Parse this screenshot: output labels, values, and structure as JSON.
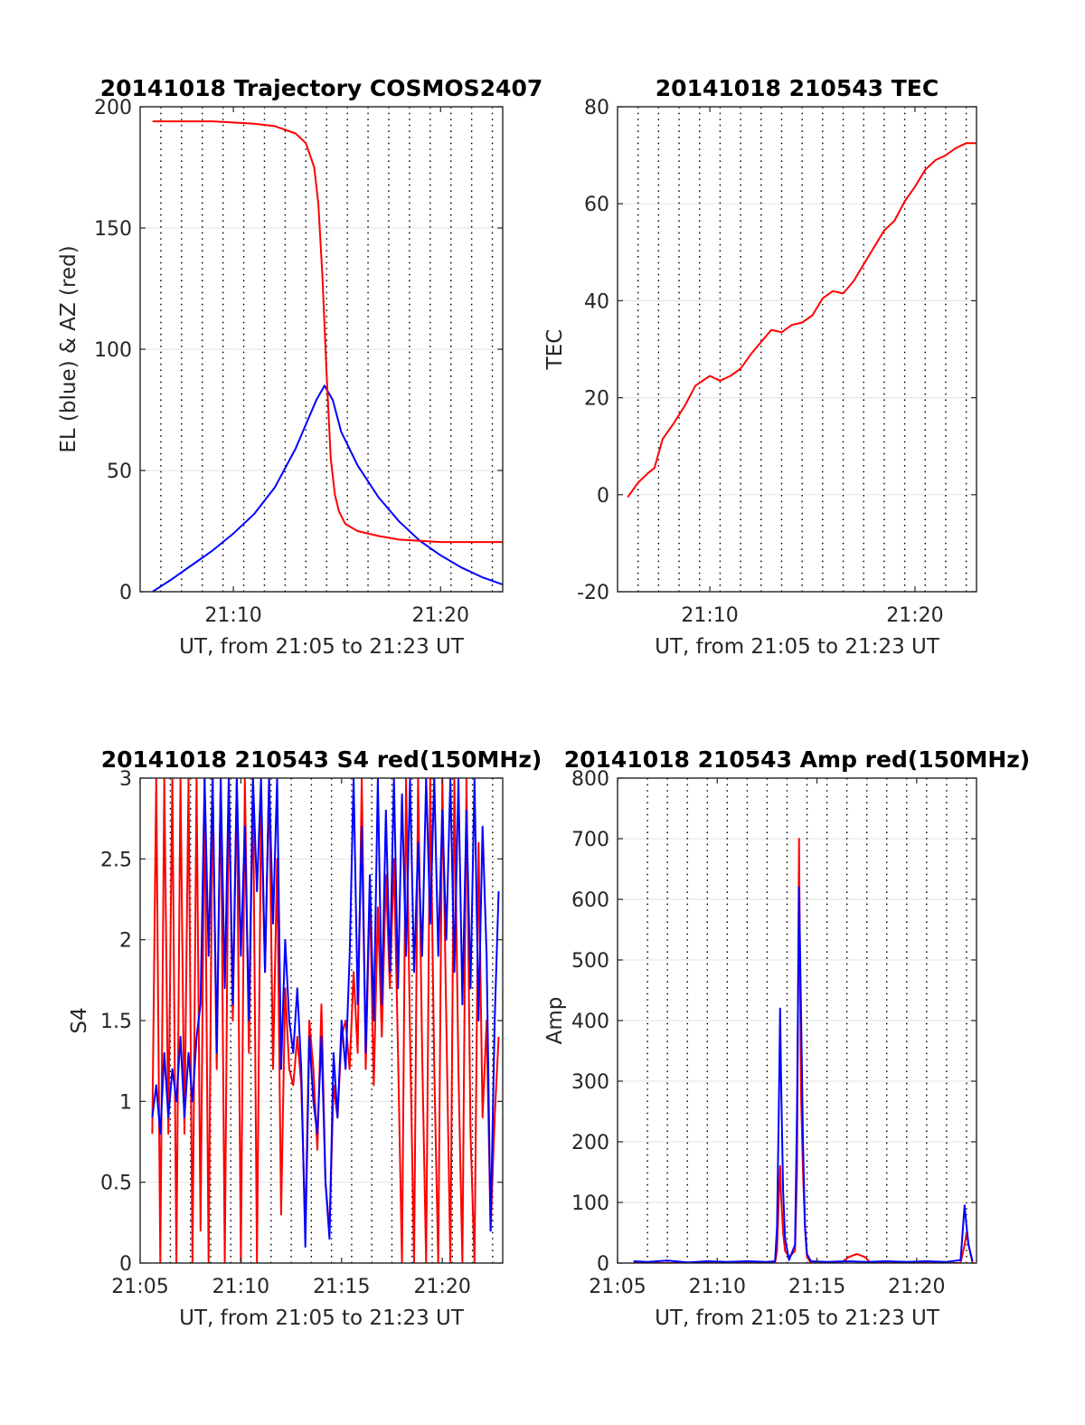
{
  "colors": {
    "az": "#ff0000",
    "el": "#0000ff",
    "red": "#ff0000",
    "blue": "#0000ff",
    "grid": "#e6e6e6",
    "vline": "#000000"
  },
  "chart_data": [
    {
      "id": "trajectory",
      "type": "line",
      "title": "20141018 Trajectory COSMOS2407",
      "xlabel": "UT, from 21:05 to 21:23 UT",
      "ylabel": "EL (blue) & AZ (red)",
      "xlim": [
        5.5,
        23
      ],
      "ylim": [
        0,
        200
      ],
      "xticks": [
        {
          "v": 10,
          "label": "21:10"
        },
        {
          "v": 20,
          "label": "21:20"
        }
      ],
      "yticks": [
        {
          "v": 0,
          "label": "0"
        },
        {
          "v": 50,
          "label": "50"
        },
        {
          "v": 100,
          "label": "100"
        },
        {
          "v": 150,
          "label": "150"
        },
        {
          "v": 200,
          "label": "200"
        }
      ],
      "vlines": [
        6.5,
        7.5,
        8.5,
        9.5,
        10.5,
        11.5,
        12.5,
        13.5,
        14.5,
        15.5,
        16.5,
        17.5,
        18.5,
        19.5,
        20.5,
        21.5,
        22.5
      ],
      "series": [
        {
          "color": "el",
          "x": [
            6.1,
            7,
            8,
            9,
            10,
            11,
            12,
            13,
            13.5,
            14,
            14.4,
            14.8,
            15.2,
            16,
            17,
            18,
            19,
            20,
            21,
            22,
            23
          ],
          "y": [
            0,
            5,
            11,
            17,
            24,
            32,
            43,
            59,
            69,
            79,
            85,
            79,
            66,
            52,
            39,
            29,
            21,
            15,
            10,
            6,
            3
          ]
        },
        {
          "color": "az",
          "x": [
            6.1,
            7,
            8,
            9,
            10,
            11,
            12,
            13,
            13.5,
            13.9,
            14.1,
            14.3,
            14.5,
            14.7,
            14.9,
            15.1,
            15.4,
            16,
            17,
            18,
            19,
            20,
            21,
            22,
            23
          ],
          "y": [
            194,
            194,
            194,
            194,
            193.5,
            193,
            192,
            189,
            185,
            175,
            160,
            130,
            90,
            55,
            40,
            33,
            28,
            25,
            23,
            21.5,
            21,
            20.5,
            20.5,
            20.5,
            20.5
          ]
        }
      ]
    },
    {
      "id": "tec",
      "type": "line",
      "title": "20141018 210543 TEC",
      "xlabel": "UT, from 21:05 to 21:23 UT",
      "ylabel": "TEC",
      "xlim": [
        5.5,
        23
      ],
      "ylim": [
        -20,
        80
      ],
      "xticks": [
        {
          "v": 10,
          "label": "21:10"
        },
        {
          "v": 20,
          "label": "21:20"
        }
      ],
      "yticks": [
        {
          "v": -20,
          "label": "-20"
        },
        {
          "v": 0,
          "label": "0"
        },
        {
          "v": 20,
          "label": "20"
        },
        {
          "v": 40,
          "label": "40"
        },
        {
          "v": 60,
          "label": "60"
        },
        {
          "v": 80,
          "label": "80"
        }
      ],
      "vlines": [
        6.5,
        7.5,
        8.5,
        9.5,
        10.5,
        11.5,
        12.5,
        13.5,
        14.5,
        15.5,
        16.5,
        17.5,
        18.5,
        19.5,
        20.5,
        21.5,
        22.5
      ],
      "series": [
        {
          "color": "red",
          "x": [
            6.0,
            6.5,
            7.0,
            7.3,
            7.7,
            8.2,
            8.8,
            9.3,
            10.0,
            10.5,
            11.0,
            11.5,
            12.0,
            12.5,
            13.0,
            13.5,
            14.0,
            14.5,
            15.0,
            15.5,
            16.0,
            16.5,
            17.0,
            17.5,
            18.0,
            18.5,
            19.0,
            19.5,
            20.0,
            20.5,
            21.0,
            21.5,
            22.0,
            22.5,
            23.0
          ],
          "y": [
            -0.5,
            2.5,
            4.5,
            5.5,
            11.5,
            14.5,
            18.5,
            22.5,
            24.5,
            23.5,
            24.5,
            26,
            29,
            31.5,
            34,
            33.5,
            35,
            35.5,
            37,
            40.5,
            42,
            41.5,
            44,
            47.5,
            51,
            54.5,
            56.5,
            60.5,
            63.5,
            67,
            69,
            70,
            71.5,
            72.5,
            72.5
          ]
        }
      ]
    },
    {
      "id": "s4",
      "type": "line",
      "title": "20141018 210543 S4 red(150MHz)",
      "xlabel": "UT, from 21:05 to 21:23 UT",
      "ylabel": "S4",
      "xlim": [
        5,
        23
      ],
      "ylim": [
        0,
        3
      ],
      "xticks": [
        {
          "v": 5,
          "label": "21:05"
        },
        {
          "v": 10,
          "label": "21:10"
        },
        {
          "v": 15,
          "label": "21:15"
        },
        {
          "v": 20,
          "label": "21:20"
        }
      ],
      "yticks": [
        {
          "v": 0,
          "label": "0"
        },
        {
          "v": 0.5,
          "label": "0.5"
        },
        {
          "v": 1,
          "label": "1"
        },
        {
          "v": 1.5,
          "label": "1.5"
        },
        {
          "v": 2,
          "label": "2"
        },
        {
          "v": 2.5,
          "label": "2.5"
        },
        {
          "v": 3,
          "label": "3"
        }
      ],
      "vlines": [
        6.5,
        7.5,
        8.5,
        9.5,
        10.5,
        11.5,
        12.5,
        13.5,
        14.5,
        15.5,
        16.5,
        17.5,
        18.5,
        19.5,
        20.5,
        21.5,
        22.5
      ],
      "series": [
        {
          "color": "red",
          "x": [
            5.6,
            5.8,
            6.0,
            6.2,
            6.4,
            6.6,
            6.8,
            7.0,
            7.2,
            7.4,
            7.6,
            7.8,
            8.0,
            8.2,
            8.4,
            8.6,
            8.8,
            9.0,
            9.2,
            9.4,
            9.6,
            9.8,
            10.0,
            10.2,
            10.4,
            10.6,
            10.8,
            11.0,
            11.2,
            11.4,
            11.6,
            11.8,
            12.0,
            12.2,
            12.4,
            12.6,
            12.8,
            13.0,
            13.2,
            13.4,
            13.6,
            13.8,
            14.0,
            14.2,
            14.4,
            14.6,
            14.8,
            15.0,
            15.2,
            15.4,
            15.6,
            15.8,
            16.0,
            16.2,
            16.4,
            16.6,
            16.8,
            17.0,
            17.2,
            17.4,
            17.6,
            17.8,
            18.0,
            18.2,
            18.4,
            18.6,
            18.8,
            19.0,
            19.2,
            19.4,
            19.6,
            19.8,
            20.0,
            20.2,
            20.4,
            20.6,
            20.8,
            21.0,
            21.2,
            21.4,
            21.6,
            21.8,
            22.0,
            22.2,
            22.4,
            22.6,
            22.8
          ],
          "y": [
            0.8,
            3,
            0,
            3,
            0.8,
            3,
            0,
            3,
            0.8,
            3,
            0,
            3,
            0.2,
            3,
            0,
            3,
            1.2,
            3,
            0,
            3,
            1.5,
            3,
            0,
            3,
            1.3,
            3,
            0,
            2.8,
            1.8,
            3,
            1.2,
            2.5,
            0.3,
            1.7,
            1.2,
            1.1,
            1.4,
            1.1,
            0.2,
            1.5,
            1.2,
            0.7,
            1.6,
            0.5,
            0.2,
            1.1,
            0.9,
            1.4,
            1.5,
            1.2,
            1.8,
            1.3,
            3,
            1.2,
            2.3,
            1.1,
            2.2,
            1.4,
            2.4,
            1.7,
            2.5,
            1.3,
            0,
            3,
            1.4,
            0,
            3,
            1.3,
            0,
            3,
            1.2,
            0,
            3,
            1.5,
            0,
            3,
            1.2,
            0,
            3,
            0.8,
            0,
            2.6,
            0.9,
            1.5,
            0.2,
            0.9,
            1.4
          ]
        },
        {
          "color": "blue",
          "x": [
            5.6,
            5.8,
            6.0,
            6.2,
            6.4,
            6.6,
            6.8,
            7.0,
            7.2,
            7.4,
            7.6,
            7.8,
            8.0,
            8.2,
            8.4,
            8.6,
            8.8,
            9.0,
            9.2,
            9.4,
            9.6,
            9.8,
            10.0,
            10.2,
            10.4,
            10.6,
            10.8,
            11.0,
            11.2,
            11.4,
            11.6,
            11.8,
            12.0,
            12.2,
            12.4,
            12.6,
            12.8,
            13.0,
            13.2,
            13.4,
            13.6,
            13.8,
            14.0,
            14.2,
            14.4,
            14.6,
            14.8,
            15.0,
            15.2,
            15.4,
            15.6,
            15.8,
            16.0,
            16.2,
            16.4,
            16.6,
            16.8,
            17.0,
            17.2,
            17.4,
            17.6,
            17.8,
            18.0,
            18.2,
            18.4,
            18.6,
            18.8,
            19.0,
            19.2,
            19.4,
            19.6,
            19.8,
            20.0,
            20.2,
            20.4,
            20.6,
            20.8,
            21.0,
            21.2,
            21.4,
            21.6,
            21.8,
            22.0,
            22.2,
            22.4,
            22.6,
            22.8
          ],
          "y": [
            0.9,
            1.1,
            0.8,
            1.3,
            0.9,
            1.2,
            1.0,
            1.4,
            0.9,
            1.3,
            1.0,
            1.4,
            1.6,
            3,
            1.9,
            3,
            1.3,
            3,
            1.7,
            3,
            1.6,
            3,
            1.9,
            2.7,
            1.5,
            3,
            2.3,
            3,
            1.8,
            3,
            2.1,
            3,
            1.2,
            2.0,
            1.5,
            1.3,
            1.7,
            1.2,
            0.1,
            1.4,
            1.0,
            0.8,
            1.4,
            0.5,
            0.15,
            1.3,
            0.9,
            1.5,
            1.2,
            1.9,
            3,
            1.6,
            2.7,
            1.3,
            2.4,
            1.5,
            3,
            1.6,
            2.8,
            1.8,
            3,
            1.7,
            2.9,
            1.9,
            3,
            1.8,
            2.6,
            1.9,
            3,
            2.1,
            3,
            1.9,
            2.8,
            2.0,
            3,
            1.8,
            3,
            1.6,
            2.8,
            1.7,
            3,
            1.5,
            2.7,
            1.9,
            0.2,
            1.5,
            2.3
          ]
        }
      ]
    },
    {
      "id": "amp",
      "type": "line",
      "title": "20141018 210543 Amp red(150MHz)",
      "xlabel": "UT, from 21:05 to 21:23 UT",
      "ylabel": "Amp",
      "xlim": [
        5,
        23
      ],
      "ylim": [
        0,
        800
      ],
      "xticks": [
        {
          "v": 5,
          "label": "21:05"
        },
        {
          "v": 10,
          "label": "21:10"
        },
        {
          "v": 15,
          "label": "21:15"
        },
        {
          "v": 20,
          "label": "21:20"
        }
      ],
      "yticks": [
        {
          "v": 0,
          "label": "0"
        },
        {
          "v": 100,
          "label": "100"
        },
        {
          "v": 200,
          "label": "200"
        },
        {
          "v": 300,
          "label": "300"
        },
        {
          "v": 400,
          "label": "400"
        },
        {
          "v": 500,
          "label": "500"
        },
        {
          "v": 600,
          "label": "600"
        },
        {
          "v": 700,
          "label": "700"
        },
        {
          "v": 800,
          "label": "800"
        }
      ],
      "vlines": [
        6.5,
        7.5,
        8.5,
        9.5,
        10.5,
        11.5,
        12.5,
        13.5,
        14.5,
        15.5,
        16.5,
        17.5,
        18.5,
        19.5,
        20.5,
        21.5,
        22.5
      ],
      "series": [
        {
          "color": "red",
          "x": [
            5.8,
            12.9,
            13.0,
            13.1,
            13.15,
            13.2,
            13.3,
            13.4,
            13.6,
            13.9,
            14.0,
            14.1,
            14.2,
            14.3,
            14.4,
            14.5,
            14.7,
            16.2,
            16.6,
            17.0,
            17.4,
            17.7,
            22.2,
            22.4,
            22.5,
            22.6,
            22.8
          ],
          "y": [
            0,
            0,
            20,
            120,
            160,
            110,
            50,
            20,
            10,
            20,
            150,
            700,
            280,
            150,
            60,
            10,
            0,
            0,
            10,
            15,
            10,
            0,
            0,
            30,
            50,
            30,
            0
          ]
        },
        {
          "color": "blue",
          "x": [
            5.8,
            6.5,
            7.5,
            8.5,
            9.5,
            10.5,
            11.5,
            12.5,
            12.9,
            13.0,
            13.1,
            13.15,
            13.2,
            13.3,
            13.4,
            13.6,
            13.9,
            14.0,
            14.1,
            14.2,
            14.3,
            14.4,
            14.5,
            14.7,
            15.5,
            16.5,
            17.5,
            18.5,
            19.5,
            20.5,
            21.5,
            22.2,
            22.4,
            22.5,
            22.6,
            22.8
          ],
          "y": [
            3,
            2,
            4,
            1,
            3,
            2,
            3,
            2,
            3,
            60,
            280,
            420,
            300,
            120,
            40,
            5,
            30,
            250,
            620,
            420,
            200,
            60,
            15,
            3,
            2,
            3,
            2,
            3,
            2,
            3,
            2,
            5,
            95,
            60,
            30,
            3
          ]
        }
      ]
    }
  ]
}
